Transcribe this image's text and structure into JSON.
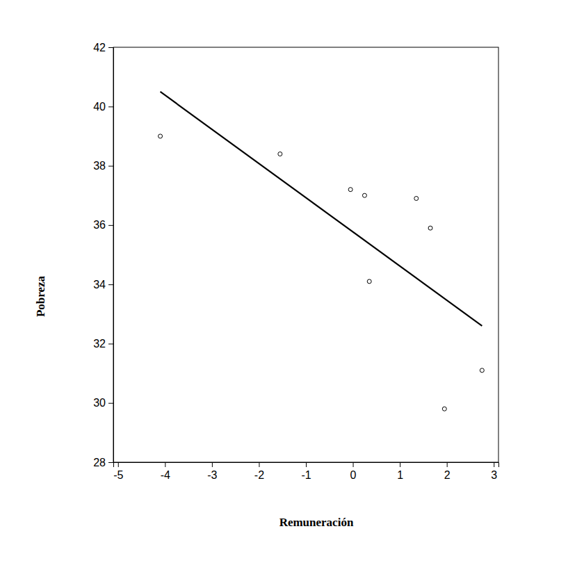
{
  "chart_data": {
    "type": "scatter",
    "x_label": "Remuneración",
    "y_label": "Pobreza",
    "xlim": [
      -5.1,
      3.1
    ],
    "ylim": [
      28,
      42
    ],
    "xticks": [
      -5,
      -4,
      -3,
      -2,
      -1,
      0,
      1,
      2,
      3
    ],
    "yticks": [
      28,
      30,
      32,
      34,
      36,
      38,
      40,
      42
    ],
    "series": [
      {
        "type": "scatter",
        "color": "#000000",
        "marker": "open-circle",
        "x": [
          -4.1,
          -1.55,
          -0.05,
          0.25,
          0.35,
          1.35,
          1.65,
          1.95,
          2.75
        ],
        "values": [
          39.0,
          38.4,
          37.2,
          37.0,
          34.1,
          36.9,
          35.9,
          29.8,
          31.1
        ]
      },
      {
        "type": "line",
        "color": "#000000",
        "line_style": "solid",
        "x": [
          -4.1,
          2.75
        ],
        "values": [
          40.5,
          32.6
        ]
      }
    ]
  }
}
